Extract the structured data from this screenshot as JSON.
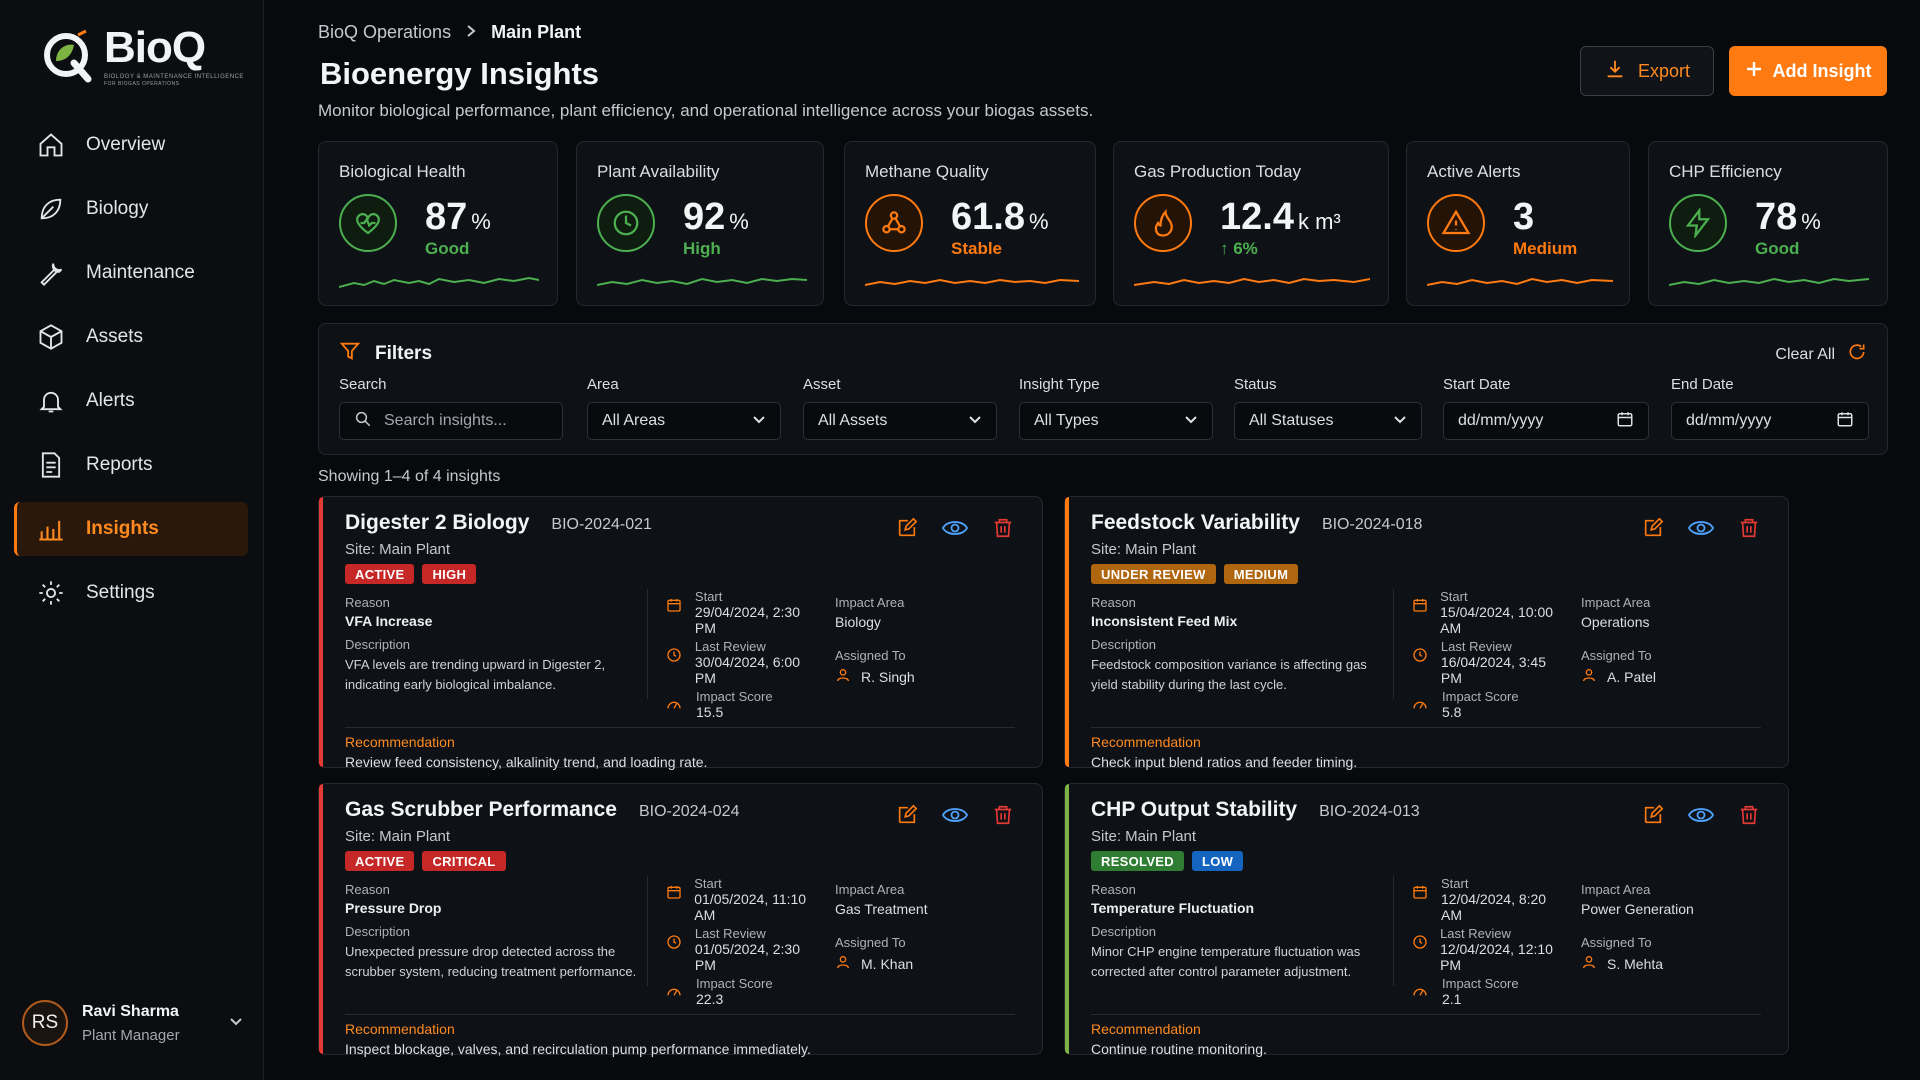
{
  "brand": {
    "name": "BioQ",
    "tagline": "BIOLOGY & MAINTENANCE INTELLIGENCE",
    "tagline2": "FOR BIOGAS OPERATIONS"
  },
  "sidebar": {
    "items": [
      {
        "label": "Overview",
        "icon": "home-icon"
      },
      {
        "label": "Biology",
        "icon": "leaf-icon"
      },
      {
        "label": "Maintenance",
        "icon": "wrench-icon"
      },
      {
        "label": "Assets",
        "icon": "cube-icon"
      },
      {
        "label": "Alerts",
        "icon": "bell-icon"
      },
      {
        "label": "Reports",
        "icon": "document-icon"
      },
      {
        "label": "Insights",
        "icon": "bar-chart-icon",
        "active": true
      },
      {
        "label": "Settings",
        "icon": "gear-icon"
      }
    ],
    "user": {
      "initials": "RS",
      "name": "Ravi Sharma",
      "role": "Plant Manager"
    }
  },
  "header": {
    "breadcrumb": [
      "BioQ Operations",
      "Main Plant"
    ],
    "title": "Bioenergy Insights",
    "subtitle": "Monitor biological performance, plant efficiency, and operational intelligence across your biogas assets.",
    "export_label": "Export",
    "add_label": "Add Insight"
  },
  "kpis": [
    {
      "label": "Biological Health",
      "value": "87",
      "unit": "%",
      "status": "Good",
      "color": "#4caf50",
      "icon": "heart-pulse-icon"
    },
    {
      "label": "Plant Availability",
      "value": "92",
      "unit": "%",
      "status": "High",
      "color": "#4caf50",
      "icon": "clock-icon"
    },
    {
      "label": "Methane Quality",
      "value": "61.8",
      "unit": "%",
      "status": "Stable",
      "color": "#ff7a10",
      "icon": "molecule-icon"
    },
    {
      "label": "Gas Production Today",
      "value": "12.4",
      "unit": "k m³",
      "status": "↑ 6%",
      "color": "#ff7a10",
      "status_color": "#4caf50",
      "icon": "flame-icon"
    },
    {
      "label": "Active Alerts",
      "value": "3",
      "unit": "",
      "status": "Medium",
      "color": "#ff7a10",
      "icon": "warning-icon"
    },
    {
      "label": "CHP Efficiency",
      "value": "78",
      "unit": "%",
      "status": "Good",
      "color": "#4caf50",
      "icon": "bolt-icon"
    }
  ],
  "filters": {
    "title": "Filters",
    "clear_label": "Clear All",
    "search_label": "Search",
    "search_placeholder": "Search insights...",
    "area_label": "Area",
    "area_value": "All Areas",
    "asset_label": "Asset",
    "asset_value": "All Assets",
    "type_label": "Insight Type",
    "type_value": "All Types",
    "status_label": "Status",
    "status_value": "All Statuses",
    "start_label": "Start Date",
    "start_value": "dd/mm/yyyy",
    "end_label": "End Date",
    "end_value": "dd/mm/yyyy"
  },
  "showing": "Showing 1–4 of 4 insights",
  "labels": {
    "reason": "Reason",
    "description": "Description",
    "start": "Start",
    "last_review": "Last Review",
    "impact_score": "Impact Score",
    "impact_area": "Impact Area",
    "assigned_to": "Assigned To",
    "recommendation": "Recommendation"
  },
  "insights": [
    {
      "title": "Digester 2 Biology",
      "id": "BIO-2024-021",
      "site": "Site: Main Plant",
      "status": "ACTIVE",
      "priority": "HIGH",
      "reason": "VFA Increase",
      "description": "VFA levels are trending upward in Digester 2, indicating early biological imbalance.",
      "start": "29/04/2024, 2:30 PM",
      "last_review": "30/04/2024, 6:00 PM",
      "impact_score": "15.5",
      "impact_area": "Biology",
      "assigned_to": "R. Singh",
      "recommendation": "Review feed consistency, alkalinity trend, and loading rate.",
      "accent": "#e53935",
      "status_color": "#c62828",
      "priority_color": "#c62828"
    },
    {
      "title": "Feedstock Variability",
      "id": "BIO-2024-018",
      "site": "Site: Main Plant",
      "status": "UNDER REVIEW",
      "priority": "MEDIUM",
      "reason": "Inconsistent Feed Mix",
      "description": "Feedstock composition variance is affecting gas yield stability during the last cycle.",
      "start": "15/04/2024, 10:00 AM",
      "last_review": "16/04/2024, 3:45 PM",
      "impact_score": "5.8",
      "impact_area": "Operations",
      "assigned_to": "A. Patel",
      "recommendation": "Check input blend ratios and feeder timing.",
      "accent": "#ff7a10",
      "status_color": "#b0650f",
      "priority_color": "#b0650f"
    },
    {
      "title": "Gas Scrubber Performance",
      "id": "BIO-2024-024",
      "site": "Site: Main Plant",
      "status": "ACTIVE",
      "priority": "CRITICAL",
      "reason": "Pressure Drop",
      "description": "Unexpected pressure drop detected across the scrubber system, reducing treatment performance.",
      "start": "01/05/2024, 11:10 AM",
      "last_review": "01/05/2024, 2:30 PM",
      "impact_score": "22.3",
      "impact_area": "Gas Treatment",
      "assigned_to": "M. Khan",
      "recommendation": "Inspect blockage, valves, and recirculation pump performance immediately.",
      "accent": "#e53935",
      "status_color": "#c62828",
      "priority_color": "#c62828"
    },
    {
      "title": "CHP Output Stability",
      "id": "BIO-2024-013",
      "site": "Site: Main Plant",
      "status": "RESOLVED",
      "priority": "LOW",
      "reason": "Temperature Fluctuation",
      "description": "Minor CHP engine temperature fluctuation was corrected after control parameter adjustment.",
      "start": "12/04/2024, 8:20 AM",
      "last_review": "12/04/2024, 12:10 PM",
      "impact_score": "2.1",
      "impact_area": "Power Generation",
      "assigned_to": "S. Mehta",
      "recommendation": "Continue routine monitoring.",
      "accent": "#7cb342",
      "status_color": "#2e7d32",
      "priority_color": "#1565c0"
    }
  ]
}
